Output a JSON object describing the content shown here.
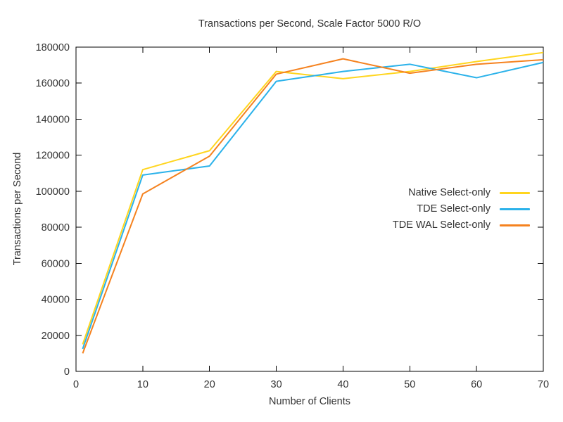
{
  "chart_data": {
    "type": "line",
    "title": "Transactions per Second, Scale Factor 5000 R/O",
    "xlabel": "Number of Clients",
    "ylabel": "Transactions per Second",
    "x": [
      1,
      10,
      20,
      30,
      40,
      50,
      60,
      70
    ],
    "xlim": [
      0,
      70
    ],
    "ylim": [
      0,
      180000
    ],
    "xticks": [
      0,
      10,
      20,
      30,
      40,
      50,
      60,
      70
    ],
    "yticks": [
      0,
      20000,
      40000,
      60000,
      80000,
      100000,
      120000,
      140000,
      160000,
      180000
    ],
    "grid": false,
    "legend_position": "inside-right-middle",
    "axis_color": "#000000",
    "text_color": "#333333",
    "series": [
      {
        "name": "Native Select-only",
        "color": "#FFD51E",
        "values": [
          15000,
          112000,
          122500,
          166500,
          162500,
          166500,
          172000,
          177000
        ]
      },
      {
        "name": "TDE Select-only",
        "color": "#2BB2EA",
        "values": [
          12500,
          109000,
          114000,
          161000,
          166500,
          170500,
          163000,
          171500
        ]
      },
      {
        "name": "TDE WAL Select-only",
        "color": "#F5821F",
        "values": [
          10000,
          98500,
          119500,
          165000,
          173500,
          165500,
          170500,
          173000
        ]
      }
    ]
  }
}
